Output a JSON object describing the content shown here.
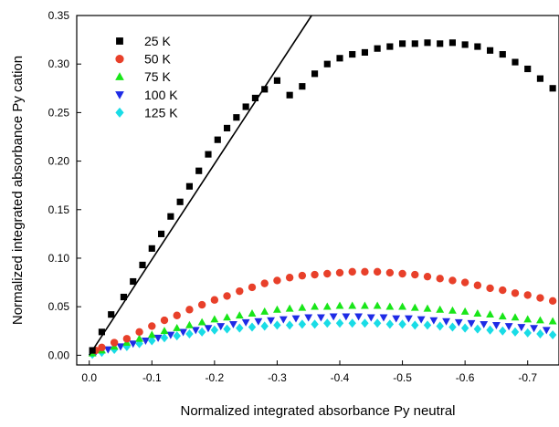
{
  "chart_data": {
    "type": "scatter",
    "title": "",
    "xlabel": "Normalized integrated absorbance Py neutral",
    "ylabel": "Normalized integrated absorbance Py cation",
    "xlim": [
      0.02,
      -0.75
    ],
    "ylim": [
      -0.01,
      0.35
    ],
    "x_reversed": true,
    "grid": false,
    "legend_position": "top-left",
    "x_ticks": [
      0.0,
      -0.1,
      -0.2,
      -0.3,
      -0.4,
      -0.5,
      -0.6,
      -0.7
    ],
    "x_tick_labels": [
      "0.0",
      "-0.1",
      "-0.2",
      "-0.3",
      "-0.4",
      "-0.5",
      "-0.6",
      "-0.7"
    ],
    "y_ticks": [
      0.0,
      0.05,
      0.1,
      0.15,
      0.2,
      0.25,
      0.3,
      0.35
    ],
    "y_tick_labels": [
      "0.00",
      "0.05",
      "0.10",
      "0.15",
      "0.20",
      "0.25",
      "0.30",
      "0.35"
    ],
    "fit_line": {
      "color": "#000000",
      "x": [
        0.0,
        -0.355
      ],
      "y": [
        0.0,
        0.35
      ]
    },
    "series": [
      {
        "name": "25 K",
        "marker": "square",
        "color": "#000000",
        "x": [
          -0.005,
          -0.02,
          -0.035,
          -0.055,
          -0.07,
          -0.085,
          -0.1,
          -0.115,
          -0.13,
          -0.145,
          -0.16,
          -0.175,
          -0.19,
          -0.205,
          -0.22,
          -0.235,
          -0.25,
          -0.265,
          -0.28,
          -0.3,
          -0.32,
          -0.34,
          -0.36,
          -0.38,
          -0.4,
          -0.42,
          -0.44,
          -0.46,
          -0.48,
          -0.5,
          -0.52,
          -0.54,
          -0.56,
          -0.58,
          -0.6,
          -0.62,
          -0.64,
          -0.66,
          -0.68,
          -0.7,
          -0.72,
          -0.74
        ],
        "y": [
          0.005,
          0.024,
          0.042,
          0.06,
          0.076,
          0.093,
          0.11,
          0.125,
          0.143,
          0.158,
          0.174,
          0.19,
          0.207,
          0.222,
          0.234,
          0.245,
          0.256,
          0.265,
          0.274,
          0.283,
          0.268,
          0.277,
          0.29,
          0.3,
          0.306,
          0.31,
          0.312,
          0.316,
          0.318,
          0.321,
          0.321,
          0.322,
          0.321,
          0.322,
          0.32,
          0.318,
          0.314,
          0.31,
          0.302,
          0.295,
          0.285,
          0.275
        ]
      },
      {
        "name": "50 K",
        "marker": "circle",
        "color": "#e8402a",
        "x": [
          -0.01,
          -0.02,
          -0.04,
          -0.06,
          -0.08,
          -0.1,
          -0.12,
          -0.14,
          -0.16,
          -0.18,
          -0.2,
          -0.22,
          -0.24,
          -0.26,
          -0.28,
          -0.3,
          -0.32,
          -0.34,
          -0.36,
          -0.38,
          -0.4,
          -0.42,
          -0.44,
          -0.46,
          -0.48,
          -0.5,
          -0.52,
          -0.54,
          -0.56,
          -0.58,
          -0.6,
          -0.62,
          -0.64,
          -0.66,
          -0.68,
          -0.7,
          -0.72,
          -0.74
        ],
        "y": [
          0.005,
          0.008,
          0.013,
          0.017,
          0.024,
          0.03,
          0.036,
          0.041,
          0.047,
          0.052,
          0.057,
          0.061,
          0.066,
          0.07,
          0.074,
          0.077,
          0.08,
          0.082,
          0.083,
          0.084,
          0.085,
          0.086,
          0.086,
          0.086,
          0.085,
          0.084,
          0.083,
          0.081,
          0.079,
          0.077,
          0.075,
          0.072,
          0.069,
          0.067,
          0.064,
          0.062,
          0.059,
          0.056
        ]
      },
      {
        "name": "75 K",
        "marker": "triangle-up",
        "color": "#19e619",
        "x": [
          -0.005,
          -0.02,
          -0.04,
          -0.06,
          -0.08,
          -0.1,
          -0.12,
          -0.14,
          -0.16,
          -0.18,
          -0.2,
          -0.22,
          -0.24,
          -0.26,
          -0.28,
          -0.3,
          -0.32,
          -0.34,
          -0.36,
          -0.38,
          -0.4,
          -0.42,
          -0.44,
          -0.46,
          -0.48,
          -0.5,
          -0.52,
          -0.54,
          -0.56,
          -0.58,
          -0.6,
          -0.62,
          -0.64,
          -0.66,
          -0.68,
          -0.7,
          -0.72,
          -0.74
        ],
        "y": [
          0.002,
          0.005,
          0.009,
          0.013,
          0.017,
          0.021,
          0.025,
          0.028,
          0.031,
          0.034,
          0.037,
          0.039,
          0.041,
          0.043,
          0.045,
          0.047,
          0.048,
          0.049,
          0.05,
          0.05,
          0.051,
          0.051,
          0.051,
          0.051,
          0.05,
          0.05,
          0.049,
          0.048,
          0.047,
          0.046,
          0.045,
          0.043,
          0.042,
          0.04,
          0.039,
          0.037,
          0.036,
          0.035
        ]
      },
      {
        "name": "100 K",
        "marker": "triangle-down",
        "color": "#1e2be6",
        "x": [
          -0.01,
          -0.03,
          -0.05,
          -0.07,
          -0.09,
          -0.11,
          -0.13,
          -0.15,
          -0.17,
          -0.19,
          -0.21,
          -0.23,
          -0.25,
          -0.27,
          -0.29,
          -0.31,
          -0.33,
          -0.35,
          -0.37,
          -0.39,
          -0.41,
          -0.43,
          -0.45,
          -0.47,
          -0.49,
          -0.51,
          -0.53,
          -0.55,
          -0.57,
          -0.59,
          -0.61,
          -0.63,
          -0.65,
          -0.67,
          -0.69,
          -0.71,
          -0.73
        ],
        "y": [
          0.003,
          0.006,
          0.009,
          0.012,
          0.015,
          0.018,
          0.021,
          0.024,
          0.026,
          0.028,
          0.03,
          0.032,
          0.034,
          0.035,
          0.036,
          0.037,
          0.038,
          0.039,
          0.039,
          0.04,
          0.04,
          0.04,
          0.039,
          0.039,
          0.038,
          0.038,
          0.037,
          0.036,
          0.035,
          0.034,
          0.033,
          0.032,
          0.031,
          0.03,
          0.029,
          0.028,
          0.026
        ]
      },
      {
        "name": "125 K",
        "marker": "diamond",
        "color": "#19dce6",
        "x": [
          -0.005,
          -0.02,
          -0.04,
          -0.06,
          -0.08,
          -0.1,
          -0.12,
          -0.14,
          -0.16,
          -0.18,
          -0.2,
          -0.22,
          -0.24,
          -0.26,
          -0.28,
          -0.3,
          -0.32,
          -0.34,
          -0.36,
          -0.38,
          -0.4,
          -0.42,
          -0.44,
          -0.46,
          -0.48,
          -0.5,
          -0.52,
          -0.54,
          -0.56,
          -0.58,
          -0.6,
          -0.62,
          -0.64,
          -0.66,
          -0.68,
          -0.7,
          -0.72,
          -0.74
        ],
        "y": [
          0.001,
          0.003,
          0.006,
          0.009,
          0.012,
          0.015,
          0.018,
          0.02,
          0.022,
          0.024,
          0.026,
          0.027,
          0.028,
          0.029,
          0.03,
          0.031,
          0.031,
          0.032,
          0.032,
          0.033,
          0.033,
          0.033,
          0.033,
          0.033,
          0.032,
          0.032,
          0.031,
          0.031,
          0.03,
          0.029,
          0.028,
          0.027,
          0.026,
          0.025,
          0.024,
          0.023,
          0.022,
          0.021
        ]
      }
    ]
  }
}
